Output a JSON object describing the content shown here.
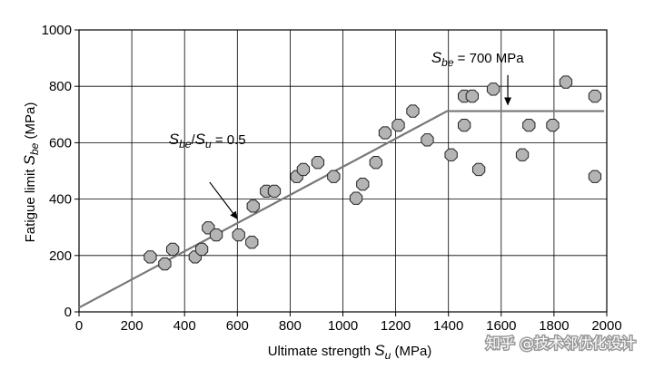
{
  "chart_data": {
    "type": "scatter",
    "title": "",
    "xlabel": {
      "main": "Ultimate strength ",
      "var": "S",
      "sub": "u",
      "unit": " (MPa)"
    },
    "ylabel": {
      "main": "Fatigue limit ",
      "var": "S",
      "sub": "be",
      "unit": " (MPa)"
    },
    "xlim": [
      0,
      2000
    ],
    "ylim": [
      0,
      1000
    ],
    "xticks": [
      0,
      200,
      400,
      600,
      800,
      1000,
      1200,
      1400,
      1600,
      1800,
      2000
    ],
    "yticks": [
      0,
      200,
      400,
      600,
      800,
      1000
    ],
    "grid": true,
    "marker_color": "#b4b4b4",
    "marker_edge": "#222222",
    "line_color": "#777777",
    "points": [
      {
        "x": 270,
        "y": 195
      },
      {
        "x": 325,
        "y": 170
      },
      {
        "x": 355,
        "y": 222
      },
      {
        "x": 440,
        "y": 195
      },
      {
        "x": 465,
        "y": 222
      },
      {
        "x": 490,
        "y": 298
      },
      {
        "x": 520,
        "y": 273
      },
      {
        "x": 605,
        "y": 273
      },
      {
        "x": 655,
        "y": 247
      },
      {
        "x": 660,
        "y": 375
      },
      {
        "x": 710,
        "y": 428
      },
      {
        "x": 740,
        "y": 428
      },
      {
        "x": 825,
        "y": 480
      },
      {
        "x": 850,
        "y": 505
      },
      {
        "x": 905,
        "y": 530
      },
      {
        "x": 965,
        "y": 480
      },
      {
        "x": 1050,
        "y": 403
      },
      {
        "x": 1075,
        "y": 453
      },
      {
        "x": 1125,
        "y": 530
      },
      {
        "x": 1160,
        "y": 635
      },
      {
        "x": 1210,
        "y": 662
      },
      {
        "x": 1265,
        "y": 712
      },
      {
        "x": 1320,
        "y": 610
      },
      {
        "x": 1410,
        "y": 557
      },
      {
        "x": 1460,
        "y": 662
      },
      {
        "x": 1460,
        "y": 765
      },
      {
        "x": 1490,
        "y": 765
      },
      {
        "x": 1515,
        "y": 505
      },
      {
        "x": 1570,
        "y": 790
      },
      {
        "x": 1680,
        "y": 557
      },
      {
        "x": 1705,
        "y": 662
      },
      {
        "x": 1795,
        "y": 662
      },
      {
        "x": 1845,
        "y": 815
      },
      {
        "x": 1955,
        "y": 765
      },
      {
        "x": 1955,
        "y": 480
      }
    ],
    "fit_line": [
      {
        "x": 0,
        "y": 15
      },
      {
        "x": 1395,
        "y": 712
      },
      {
        "x": 1990,
        "y": 712
      }
    ],
    "annotations": [
      {
        "id": "ratio",
        "var1": "S",
        "sub1": "be",
        "sep": "/",
        "var2": "S",
        "sub2": "u",
        "suffix": " = 0.5",
        "text_at": {
          "x": 340,
          "y": 595
        },
        "arrow_from": {
          "x": 495,
          "y": 460
        },
        "arrow_to": {
          "x": 600,
          "y": 330
        }
      },
      {
        "id": "plateau",
        "var1": "S",
        "sub1": "be",
        "suffix": " = 700 MPa",
        "text_at": {
          "x": 1335,
          "y": 885
        },
        "arrow_from": {
          "x": 1625,
          "y": 840
        },
        "arrow_to": {
          "x": 1625,
          "y": 735
        }
      }
    ]
  },
  "watermark": {
    "text": "知乎 @技术邻优化设计"
  }
}
